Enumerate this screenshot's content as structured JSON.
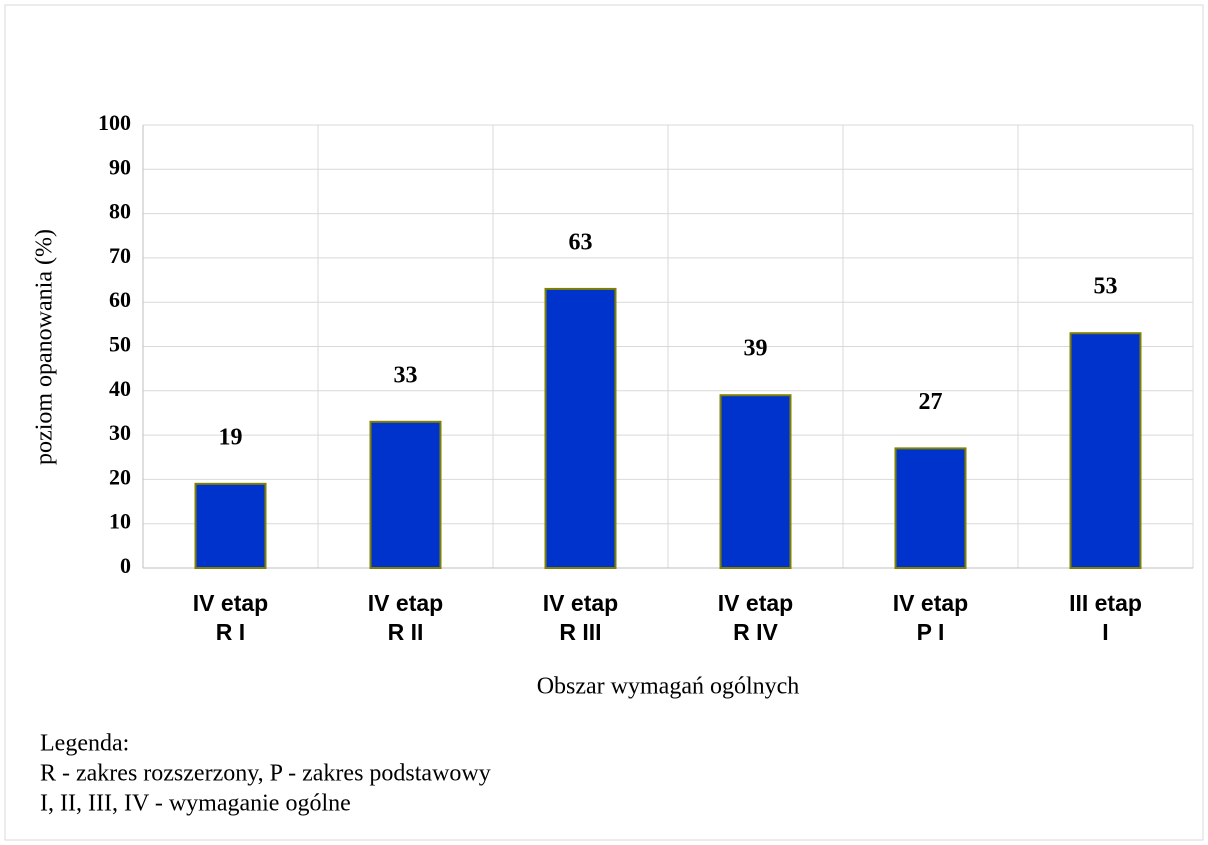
{
  "chart_data": {
    "type": "bar",
    "categories": [
      [
        "IV etap",
        "R I"
      ],
      [
        "IV etap",
        "R II"
      ],
      [
        "IV etap",
        "R III"
      ],
      [
        "IV etap",
        "R IV"
      ],
      [
        "IV etap",
        "P I"
      ],
      [
        "III etap",
        "I"
      ]
    ],
    "values": [
      19,
      33,
      63,
      39,
      27,
      53
    ],
    "color": "#0033cc",
    "edge_color": "#808000",
    "ylim": [
      0,
      100
    ],
    "yticks": [
      0,
      10,
      20,
      30,
      40,
      50,
      60,
      70,
      80,
      90,
      100
    ],
    "grid": true,
    "y_label": "poziom opanowania (%)",
    "x_label": "Obszar wymagań ogólnych"
  },
  "notes": [
    "Legenda:",
    "R - zakres rozszerzony, P - zakres podstawowy",
    "I, II, III, IV - wymaganie ogólne"
  ]
}
